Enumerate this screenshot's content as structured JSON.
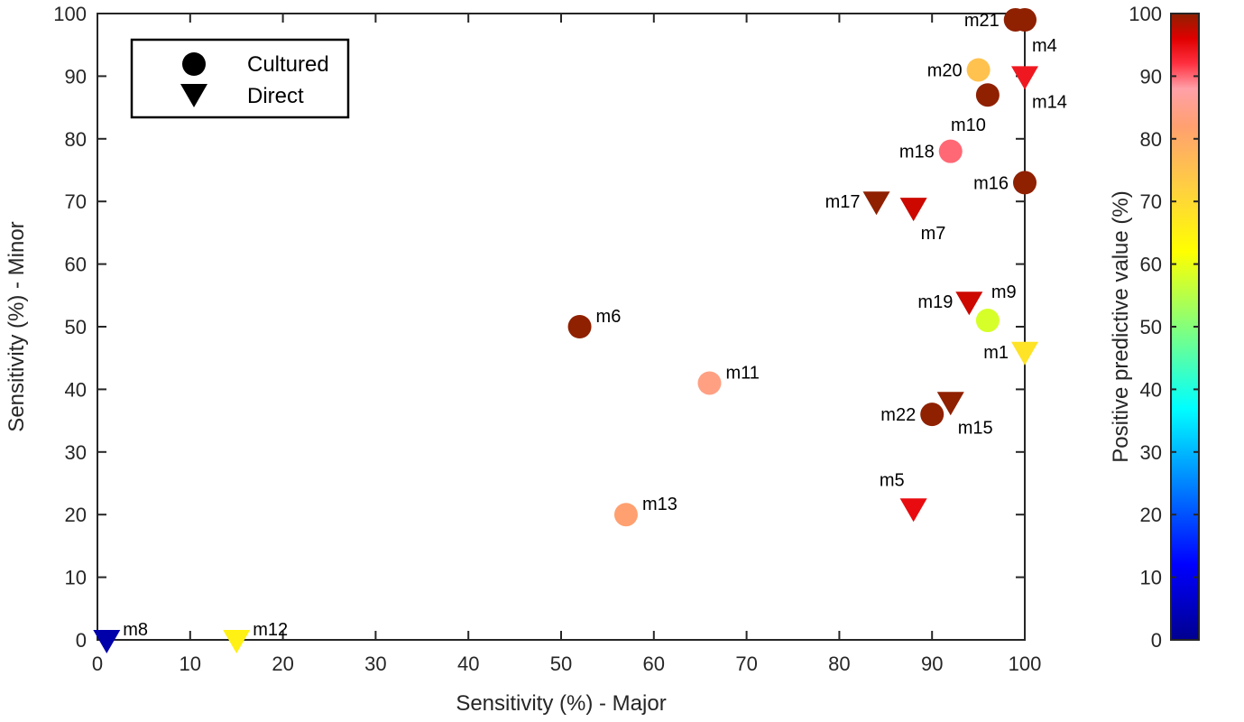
{
  "chart_data": {
    "type": "scatter",
    "xlabel": "Sensitivity (%) - Major",
    "ylabel": "Sensitivity (%) - Minor",
    "xlim": [
      0,
      100
    ],
    "ylim": [
      0,
      100
    ],
    "x_ticks": [
      0,
      10,
      20,
      30,
      40,
      50,
      60,
      70,
      80,
      90,
      100
    ],
    "y_ticks": [
      0,
      10,
      20,
      30,
      40,
      50,
      60,
      70,
      80,
      90,
      100
    ],
    "grid": false,
    "legend": {
      "placement": "top-left",
      "entries": [
        {
          "label": "Cultured",
          "marker": "circle"
        },
        {
          "label": "Direct",
          "marker": "triangle-down"
        }
      ]
    },
    "colorbar": {
      "label": "Positive predictive value (%)",
      "range": [
        0,
        100
      ],
      "ticks": [
        0,
        10,
        20,
        30,
        40,
        50,
        60,
        70,
        80,
        90,
        100
      ],
      "colormap": "jet-like"
    },
    "points": [
      {
        "name": "m21",
        "x": 99,
        "y": 99,
        "marker": "circle",
        "ppv": 100,
        "label_pos": "left"
      },
      {
        "name": "m4",
        "x": 100,
        "y": 99,
        "marker": "circle",
        "ppv": 100,
        "label_pos": "below-right"
      },
      {
        "name": "m20",
        "x": 95,
        "y": 91,
        "marker": "circle",
        "ppv": 75,
        "label_pos": "left"
      },
      {
        "name": "m14",
        "x": 100,
        "y": 90,
        "marker": "triangle",
        "ppv": 94,
        "label_pos": "below-right"
      },
      {
        "name": "m10",
        "x": 96,
        "y": 87,
        "marker": "circle",
        "ppv": 100,
        "label_pos": "below-left"
      },
      {
        "name": "m18",
        "x": 92,
        "y": 78,
        "marker": "circle",
        "ppv": 90,
        "label_pos": "left"
      },
      {
        "name": "m16",
        "x": 100,
        "y": 73,
        "marker": "circle",
        "ppv": 100,
        "label_pos": "left"
      },
      {
        "name": "m17",
        "x": 84,
        "y": 70,
        "marker": "triangle",
        "ppv": 100,
        "label_pos": "left"
      },
      {
        "name": "m7",
        "x": 88,
        "y": 69,
        "marker": "triangle",
        "ppv": 97,
        "label_pos": "below-right"
      },
      {
        "name": "m19",
        "x": 94,
        "y": 54,
        "marker": "triangle",
        "ppv": 97,
        "label_pos": "left"
      },
      {
        "name": "m9",
        "x": 96,
        "y": 51,
        "marker": "circle",
        "ppv": 58,
        "label_pos": "above-right"
      },
      {
        "name": "m6",
        "x": 52,
        "y": 50,
        "marker": "circle",
        "ppv": 100,
        "label_pos": "right"
      },
      {
        "name": "m1",
        "x": 100,
        "y": 46,
        "marker": "triangle",
        "ppv": 68,
        "label_pos": "left"
      },
      {
        "name": "m11",
        "x": 66,
        "y": 41,
        "marker": "circle",
        "ppv": 84,
        "label_pos": "right"
      },
      {
        "name": "m15",
        "x": 92,
        "y": 38,
        "marker": "triangle",
        "ppv": 100,
        "label_pos": "below-right"
      },
      {
        "name": "m22",
        "x": 90,
        "y": 36,
        "marker": "circle",
        "ppv": 100,
        "label_pos": "left"
      },
      {
        "name": "m5",
        "x": 88,
        "y": 21,
        "marker": "triangle",
        "ppv": 95,
        "label_pos": "above-left"
      },
      {
        "name": "m13",
        "x": 57,
        "y": 20,
        "marker": "circle",
        "ppv": 82,
        "label_pos": "right"
      },
      {
        "name": "m8",
        "x": 1,
        "y": 0,
        "marker": "triangle",
        "ppv": 3,
        "label_pos": "right"
      },
      {
        "name": "m12",
        "x": 15,
        "y": 0,
        "marker": "triangle",
        "ppv": 65,
        "label_pos": "right"
      }
    ]
  }
}
